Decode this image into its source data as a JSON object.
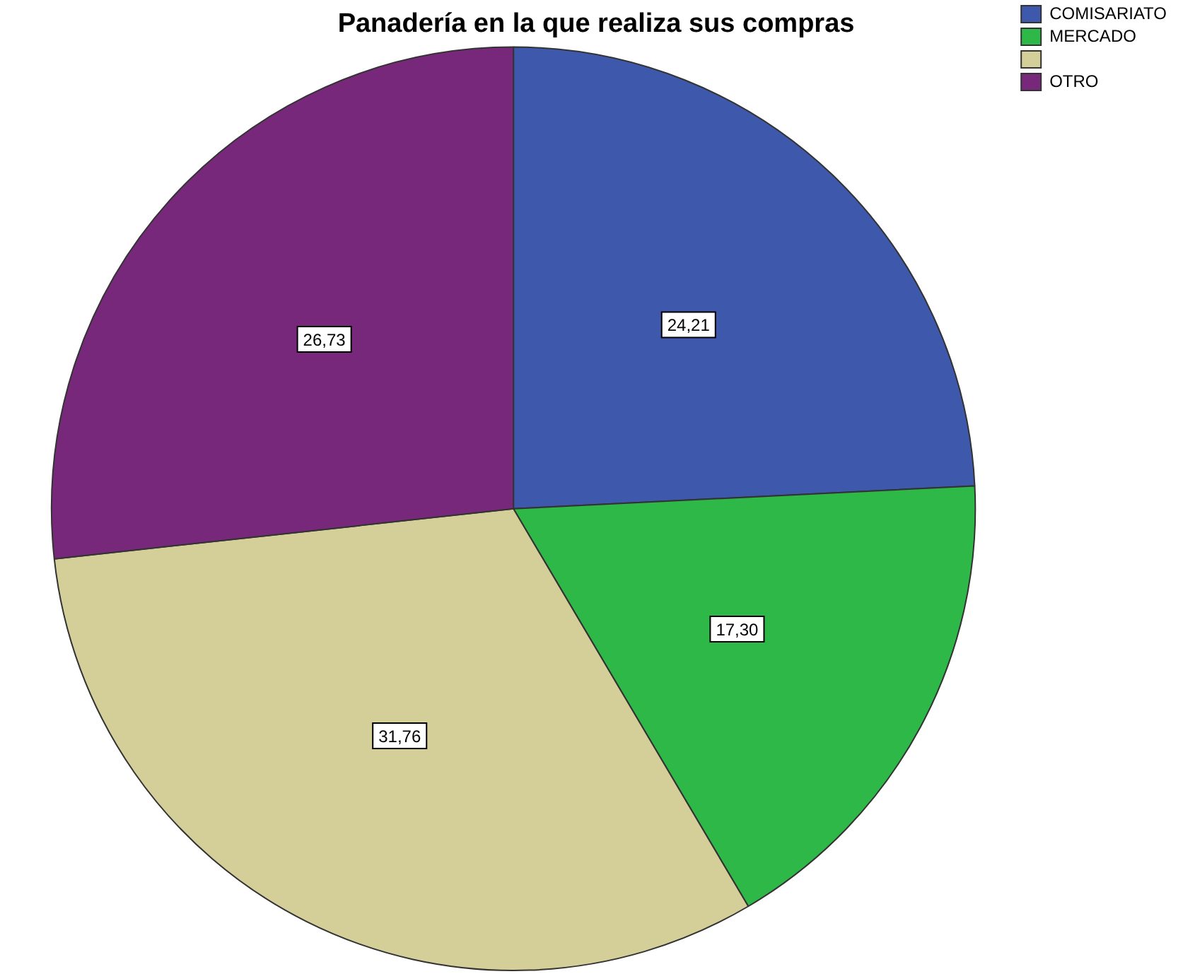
{
  "chart_data": {
    "type": "pie",
    "title": "Panadería en la que realiza sus compras",
    "categories": [
      "COMISARIATO",
      "MERCADO",
      null,
      "OTRO"
    ],
    "values": [
      24.21,
      17.3,
      31.76,
      26.73
    ],
    "colors": [
      "#3e58ac",
      "#2eb848",
      "#d4cf98",
      "#78287a"
    ],
    "value_labels": [
      "24,21",
      "17,30",
      "31,76",
      "26,73"
    ],
    "legend": "top right"
  }
}
